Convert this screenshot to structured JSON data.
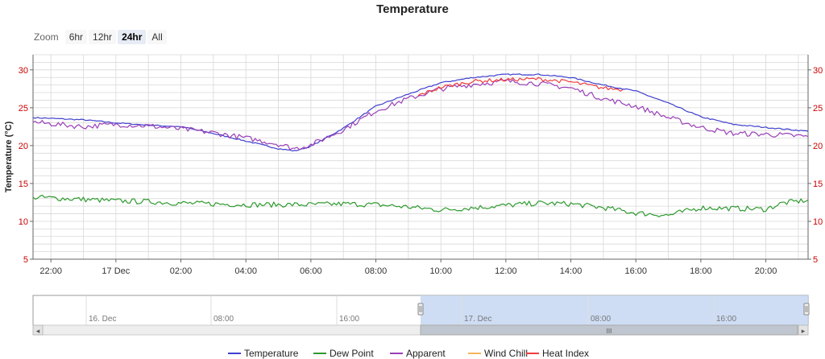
{
  "chart_data": {
    "type": "line",
    "title": "Temperature",
    "ylabel": "Temperature (°C)",
    "ylim": [
      5,
      32
    ],
    "y_ticks": [
      5,
      10,
      15,
      20,
      25,
      30
    ],
    "x_tick_labels": [
      "22:00",
      "17 Dec",
      "02:00",
      "04:00",
      "06:00",
      "08:00",
      "10:00",
      "12:00",
      "14:00",
      "16:00",
      "18:00",
      "20:00"
    ],
    "x_start_hour": -2.55,
    "x_end_hour": 21.3,
    "grid": true,
    "legend_position": "bottom",
    "series": [
      {
        "name": "Temperature",
        "color": "#3f3fcf",
        "points": [
          [
            -2.55,
            23.7
          ],
          [
            -1,
            23.4
          ],
          [
            0,
            23.0
          ],
          [
            1,
            22.7
          ],
          [
            2,
            22.5
          ],
          [
            3,
            21.6
          ],
          [
            4,
            20.6
          ],
          [
            5,
            19.6
          ],
          [
            5.5,
            19.3
          ],
          [
            6,
            19.9
          ],
          [
            7,
            22.3
          ],
          [
            8,
            25.2
          ],
          [
            9,
            26.8
          ],
          [
            10,
            28.3
          ],
          [
            11,
            29.0
          ],
          [
            12,
            29.4
          ],
          [
            13,
            29.4
          ],
          [
            14,
            29.0
          ],
          [
            15,
            28.0
          ],
          [
            16,
            27.2
          ],
          [
            17,
            25.6
          ],
          [
            18,
            23.8
          ],
          [
            19,
            22.8
          ],
          [
            20,
            22.4
          ],
          [
            21.3,
            21.9
          ]
        ]
      },
      {
        "name": "Dew Point",
        "color": "#2e9a2e",
        "points": [
          [
            -2.55,
            13.2
          ],
          [
            -1,
            12.9
          ],
          [
            0,
            12.7
          ],
          [
            1,
            12.6
          ],
          [
            2,
            12.4
          ],
          [
            3,
            12.3
          ],
          [
            4,
            12.2
          ],
          [
            5,
            12.2
          ],
          [
            6,
            12.2
          ],
          [
            7,
            12.3
          ],
          [
            8,
            12.2
          ],
          [
            9,
            11.9
          ],
          [
            10,
            11.5
          ],
          [
            11,
            11.8
          ],
          [
            12,
            12.1
          ],
          [
            13,
            12.4
          ],
          [
            14,
            12.3
          ],
          [
            15,
            11.8
          ],
          [
            16,
            11.1
          ],
          [
            17,
            10.8
          ],
          [
            18,
            11.8
          ],
          [
            19,
            11.7
          ],
          [
            20,
            11.6
          ],
          [
            20.5,
            12.4
          ],
          [
            21.3,
            12.8
          ]
        ]
      },
      {
        "name": "Apparent",
        "color": "#9a3fb8",
        "points": [
          [
            -2.55,
            23.1
          ],
          [
            -1,
            22.5
          ],
          [
            0,
            22.8
          ],
          [
            1,
            22.6
          ],
          [
            2,
            22.2
          ],
          [
            3,
            21.7
          ],
          [
            4,
            21.0
          ],
          [
            5,
            20.2
          ],
          [
            5.5,
            19.6
          ],
          [
            6,
            20.1
          ],
          [
            7,
            22.1
          ],
          [
            8,
            24.6
          ],
          [
            9,
            26.2
          ],
          [
            10,
            27.5
          ],
          [
            11,
            28.1
          ],
          [
            12,
            28.5
          ],
          [
            13,
            28.2
          ],
          [
            14,
            27.6
          ],
          [
            15,
            26.2
          ],
          [
            16,
            25.2
          ],
          [
            17,
            23.7
          ],
          [
            18,
            22.4
          ],
          [
            19,
            21.6
          ],
          [
            20,
            21.5
          ],
          [
            21.3,
            21.2
          ]
        ]
      },
      {
        "name": "Wind Chill",
        "color": "#f5b55c",
        "points": []
      },
      {
        "name": "Heat Index",
        "color": "#f03c3c",
        "points": [
          [
            9.3,
            26.6
          ],
          [
            10,
            27.7
          ],
          [
            11,
            28.5
          ],
          [
            12,
            28.7
          ],
          [
            13,
            28.8
          ],
          [
            14,
            28.4
          ],
          [
            15,
            27.6
          ],
          [
            15.6,
            27.4
          ]
        ]
      }
    ]
  },
  "zoom": {
    "label": "Zoom",
    "buttons": [
      "6hr",
      "12hr",
      "24hr",
      "All"
    ],
    "active": "24hr"
  },
  "navigator": {
    "labels": [
      "16. Dec",
      "08:00",
      "16:00",
      "17. Dec",
      "08:00",
      "16:00"
    ],
    "selected_range_fraction": [
      0.5,
      1.0
    ],
    "scrollbar_grip": "III",
    "left_arrow": "◂",
    "right_arrow": "▸"
  },
  "colors": {
    "axis_label": "#cc0000",
    "grid": "#d8d8d8",
    "navigator_selection": "#c6d7f2"
  }
}
